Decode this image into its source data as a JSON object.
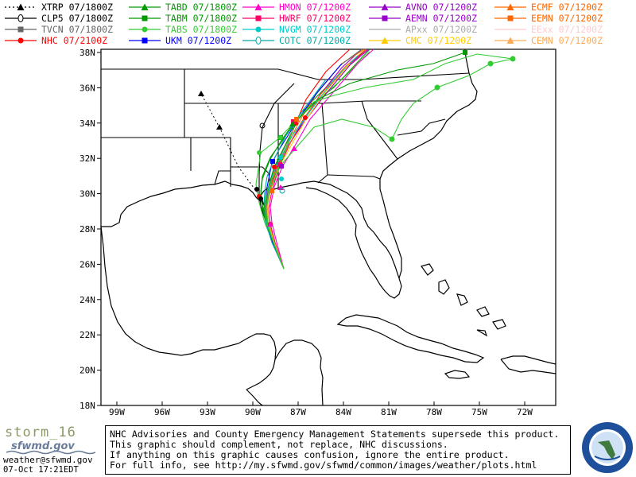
{
  "legend": [
    {
      "code": "XTRP",
      "time": "07/1800Z",
      "color": "#000000",
      "dash": "2,3",
      "marker": "triangle"
    },
    {
      "code": "TABD",
      "time": "07/1800Z",
      "color": "#009900",
      "dash": "",
      "marker": "triangle"
    },
    {
      "code": "HMON",
      "time": "07/1200Z",
      "color": "#ff00cc",
      "dash": "",
      "marker": "triangle"
    },
    {
      "code": "AVNO",
      "time": "07/1200Z",
      "color": "#9900cc",
      "dash": "",
      "marker": "triangle"
    },
    {
      "code": "ECMF",
      "time": "07/1200Z",
      "color": "#ff6600",
      "dash": "",
      "marker": "triangle"
    },
    {
      "code": "CLP5",
      "time": "07/1800Z",
      "color": "#000000",
      "dash": "",
      "marker": "zero"
    },
    {
      "code": "TABM",
      "time": "07/1800Z",
      "color": "#009900",
      "dash": "",
      "marker": "square"
    },
    {
      "code": "HWRF",
      "time": "07/1200Z",
      "color": "#ff0066",
      "dash": "",
      "marker": "square"
    },
    {
      "code": "AEMN",
      "time": "07/1200Z",
      "color": "#9900cc",
      "dash": "",
      "marker": "square"
    },
    {
      "code": "EEMN",
      "time": "07/1200Z",
      "color": "#ff6600",
      "dash": "",
      "marker": "square"
    },
    {
      "code": "TVCN",
      "time": "07/1800Z",
      "color": "#666666",
      "dash": "",
      "marker": "square"
    },
    {
      "code": "TABS",
      "time": "07/1800Z",
      "color": "#33cc33",
      "dash": "",
      "marker": "circle"
    },
    {
      "code": "NVGM",
      "time": "07/1200Z",
      "color": "#00cccc",
      "dash": "",
      "marker": "circle"
    },
    {
      "code": "APxx",
      "time": "07/1200Z",
      "color": "#aaaaaa",
      "dash": "",
      "marker": "none"
    },
    {
      "code": "EExx",
      "time": "07/1200Z",
      "color": "#ffcccc",
      "dash": "",
      "marker": "none"
    },
    {
      "code": "NHC",
      "time": "07/2100Z",
      "color": "#ff0000",
      "dash": "",
      "marker": "circle"
    },
    {
      "code": "UKM",
      "time": "07/1200Z",
      "color": "#0000ff",
      "dash": "",
      "marker": "square"
    },
    {
      "code": "COTC",
      "time": "07/1200Z",
      "color": "#00aaaa",
      "dash": "",
      "marker": "zero"
    },
    {
      "code": "CMC",
      "time": "07/1200Z",
      "color": "#ffcc00",
      "dash": "",
      "marker": "triangle"
    },
    {
      "code": "CEMN",
      "time": "07/1200Z",
      "color": "#ffaa55",
      "dash": "",
      "marker": "triangle"
    }
  ],
  "axes": {
    "lat_labels": [
      "38N",
      "36N",
      "34N",
      "32N",
      "30N",
      "28N",
      "26N",
      "24N",
      "22N",
      "20N",
      "18N"
    ],
    "lon_labels": [
      "99W",
      "96W",
      "93W",
      "90W",
      "87W",
      "84W",
      "81W",
      "78W",
      "75W",
      "72W"
    ]
  },
  "footer": {
    "logo_name": "storm_16",
    "logo_site": "sfwmd.gov",
    "email": "weather@sfwmd.gov",
    "timestamp": "07-Oct 17:21EDT",
    "disclaimer": [
      "NHC Advisories and County Emergency Management Statements supersede this product.",
      "This graphic should complement, not replace, NHC discussions.",
      "If anything on this graphic causes confusion, ignore the entire product.",
      "For full info, see  http://my.sfwmd.gov/sfwmd/common/images/weather/plots.html"
    ]
  },
  "colors": {
    "frame": "#000000",
    "land_border": "#000000",
    "background": "#ffffff"
  }
}
